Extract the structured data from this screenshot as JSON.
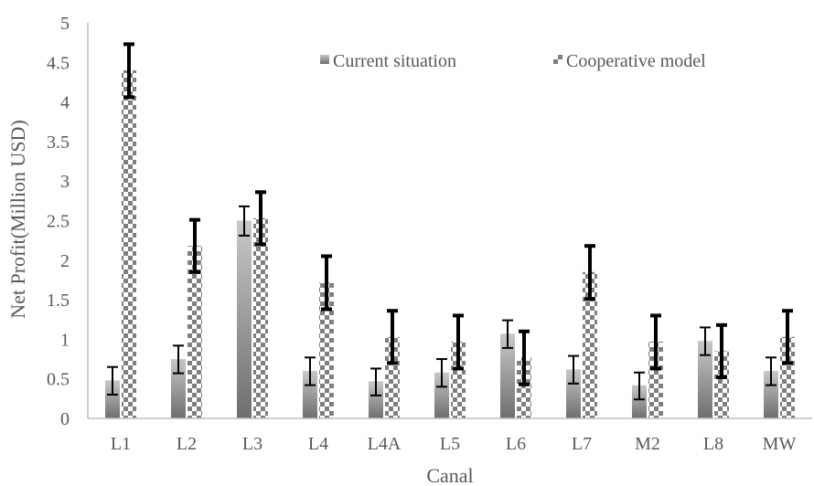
{
  "chart_data": {
    "type": "bar",
    "xlabel": "Canal",
    "ylabel": "Net Profit(Million USD)",
    "ylim": [
      0,
      5
    ],
    "yticks": [
      "0",
      "0.5",
      "1",
      "1.5",
      "2",
      "2.5",
      "3",
      "3.5",
      "4",
      "4.5",
      "5"
    ],
    "grid": false,
    "legend_position": "top-right",
    "categories": [
      "L1",
      "L2",
      "L3",
      "L4",
      "L4A",
      "L5",
      "L6",
      "L7",
      "M2",
      "L8",
      "MW"
    ],
    "series": [
      {
        "name": "Current situation",
        "pattern": "gradient",
        "color": "#8c8c8c",
        "values": [
          0.48,
          0.75,
          2.5,
          0.6,
          0.47,
          0.58,
          1.07,
          0.62,
          0.42,
          0.98,
          0.6
        ],
        "error_low": [
          0.3,
          0.57,
          2.31,
          0.42,
          0.29,
          0.4,
          0.89,
          0.44,
          0.24,
          0.8,
          0.42
        ],
        "error_high": [
          0.65,
          0.92,
          2.68,
          0.77,
          0.63,
          0.75,
          1.24,
          0.79,
          0.58,
          1.15,
          0.77
        ]
      },
      {
        "name": "Cooperative model",
        "pattern": "checker",
        "color": "#595959",
        "values": [
          4.4,
          2.18,
          2.53,
          1.72,
          1.03,
          0.97,
          0.77,
          1.85,
          0.97,
          0.85,
          1.03
        ],
        "error_low": [
          4.06,
          1.85,
          2.2,
          1.38,
          0.7,
          0.63,
          0.43,
          1.51,
          0.63,
          0.52,
          0.7
        ],
        "error_high": [
          4.73,
          2.51,
          2.86,
          2.05,
          1.36,
          1.3,
          1.1,
          2.18,
          1.3,
          1.18,
          1.36
        ]
      }
    ]
  }
}
